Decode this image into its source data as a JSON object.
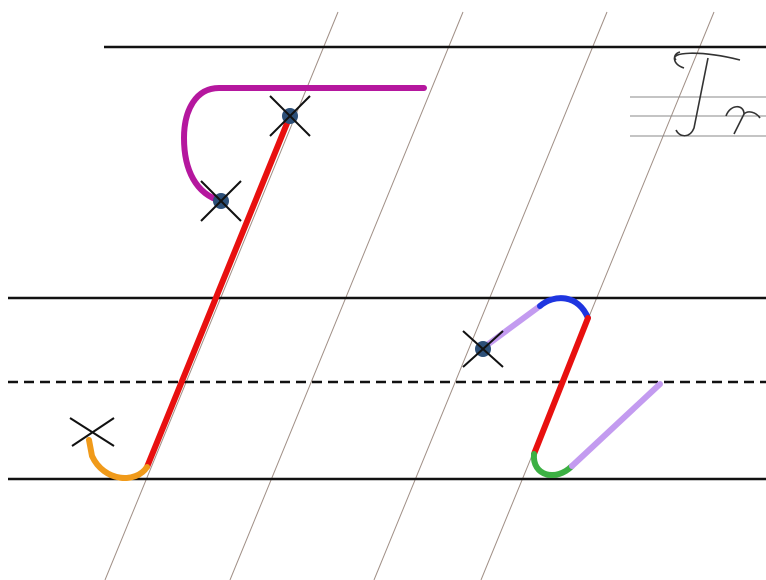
{
  "diagram": {
    "type": "cursive-letter-stroke-guide",
    "letter_sample_glyph": "𝒯𝓇",
    "colors": {
      "ruling": "#111111",
      "slant_guides": "#a08f86",
      "hook_stroke": "#b5179e",
      "main_stroke": "#e8100f",
      "tail_stroke": "#f09a1a",
      "arch_top": "#1e35e0",
      "connector_stroke": "#c39bf0",
      "bottom_turn": "#3cb043",
      "dot_fill": "#2c4f78",
      "cross_marks": "#111111"
    },
    "icons": {
      "start_marker": "x-cross-marker",
      "pivot_point": "dot-marker"
    }
  }
}
